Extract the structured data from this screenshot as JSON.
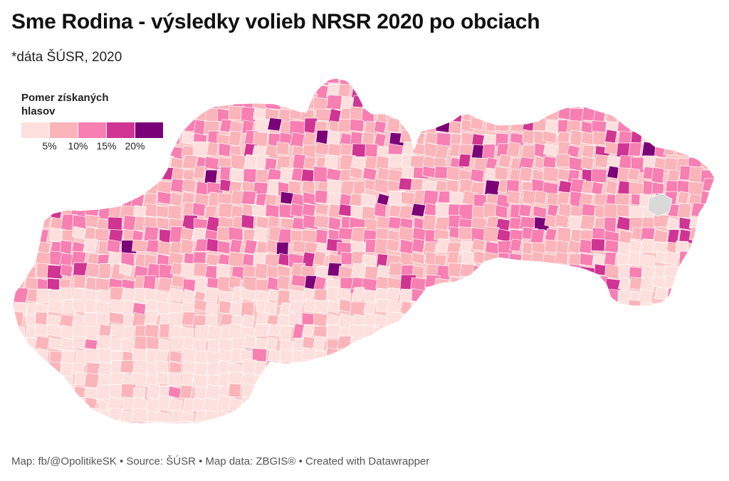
{
  "title": "Sme Rodina - výsledky volieb NRSR 2020 po obciach",
  "subtitle": "*dáta ŠÚSR, 2020",
  "legend": {
    "title": "Pomer získaných hlasov",
    "bins": [
      {
        "color": "#fde0dd"
      },
      {
        "color": "#fbb4b9"
      },
      {
        "color": "#f77fb2"
      },
      {
        "color": "#d03593"
      },
      {
        "color": "#7a0177"
      }
    ],
    "ticks": [
      "5%",
      "10%",
      "15%",
      "20%"
    ]
  },
  "map": {
    "region": "Slovakia",
    "unit": "municipalities",
    "no_data_color": "#d9d9d9"
  },
  "footer": "Map: fb/@OpolitikeSK • Source: ŠÚSR • Map data: ZBGIS® • Created with Datawrapper"
}
